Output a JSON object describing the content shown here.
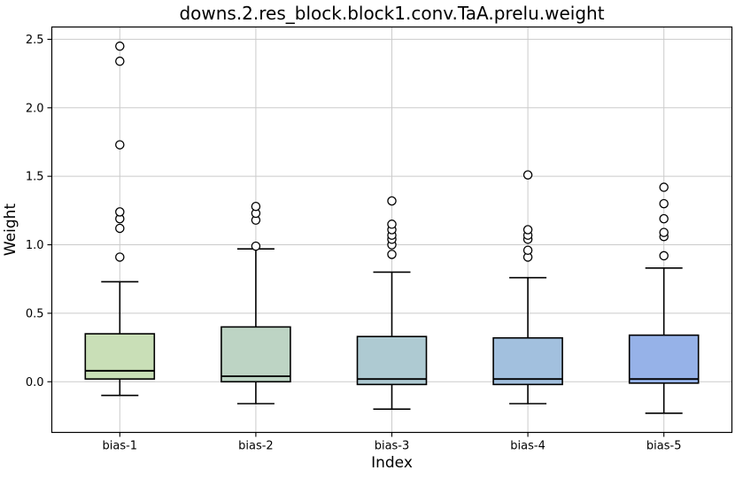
{
  "chart_data": {
    "type": "boxplot",
    "title": "downs.2.res_block.block1.conv.TaA.prelu.weight",
    "xlabel": "Index",
    "ylabel": "Weight",
    "categories": [
      "bias-1",
      "bias-2",
      "bias-3",
      "bias-4",
      "bias-5"
    ],
    "yticks": [
      0.0,
      0.5,
      1.0,
      1.5,
      2.0,
      2.5
    ],
    "ytick_labels": [
      "0.0",
      "0.5",
      "1.0",
      "1.5",
      "2.0",
      "2.5"
    ],
    "ylim": [
      -0.37,
      2.59
    ],
    "grid": true,
    "legend": "none",
    "series": [
      {
        "name": "bias-1",
        "whisker_low": -0.1,
        "q1": 0.02,
        "median": 0.08,
        "q3": 0.35,
        "whisker_high": 0.73,
        "outliers": [
          0.91,
          1.12,
          1.19,
          1.24,
          1.73,
          2.34,
          2.45
        ],
        "fill": "#c9dfb7"
      },
      {
        "name": "bias-2",
        "whisker_low": -0.16,
        "q1": 0.0,
        "median": 0.04,
        "q3": 0.4,
        "whisker_high": 0.97,
        "outliers": [
          0.99,
          1.18,
          1.23,
          1.28
        ],
        "fill": "#bdd4c4"
      },
      {
        "name": "bias-3",
        "whisker_low": -0.2,
        "q1": -0.02,
        "median": 0.02,
        "q3": 0.33,
        "whisker_high": 0.8,
        "outliers": [
          0.93,
          1.0,
          1.04,
          1.07,
          1.11,
          1.15,
          1.32
        ],
        "fill": "#aecad2"
      },
      {
        "name": "bias-4",
        "whisker_low": -0.16,
        "q1": -0.02,
        "median": 0.02,
        "q3": 0.32,
        "whisker_high": 0.76,
        "outliers": [
          0.91,
          0.96,
          1.04,
          1.07,
          1.11,
          1.51
        ],
        "fill": "#a2c0de"
      },
      {
        "name": "bias-5",
        "whisker_low": -0.23,
        "q1": -0.01,
        "median": 0.02,
        "q3": 0.34,
        "whisker_high": 0.83,
        "outliers": [
          0.92,
          1.06,
          1.09,
          1.19,
          1.3,
          1.42
        ],
        "fill": "#96b2e8"
      }
    ],
    "colors": {
      "box_edge": "#000000",
      "median": "#000000",
      "whisker": "#000000",
      "outlier_stroke": "#000000",
      "outlier_fill": "#ffffff",
      "grid": "#cbcbcb",
      "frame": "#000000",
      "background": "#ffffff"
    }
  }
}
